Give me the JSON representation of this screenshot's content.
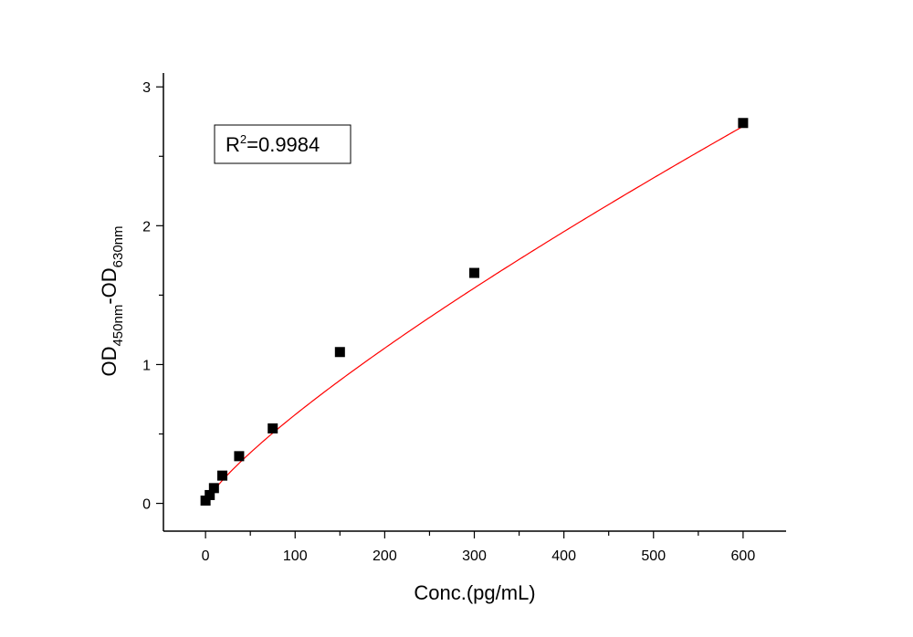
{
  "chart_data": {
    "type": "scatter",
    "xlabel": "Conc.(pg/mL)",
    "ylabel": {
      "prefix": "OD",
      "sub1": "450nm",
      "middle": "-OD",
      "sub2": "630nm"
    },
    "xlim": [
      -47,
      648
    ],
    "ylim": [
      -0.2,
      3.1
    ],
    "x_ticks": [
      0,
      100,
      200,
      300,
      400,
      500,
      600
    ],
    "x_tick_labels": [
      "0",
      "100",
      "200",
      "300",
      "400",
      "500",
      "600"
    ],
    "y_ticks": [
      0,
      1,
      2,
      3
    ],
    "y_tick_labels": [
      "0",
      "1",
      "2",
      "3"
    ],
    "x_minor_step": 50,
    "y_minor_step": 0.5,
    "grid": false,
    "series": [
      {
        "marker": "square",
        "color": "#000000",
        "x": [
          0,
          4.69,
          9.38,
          18.75,
          37.5,
          75,
          150,
          300,
          600
        ],
        "y": [
          0.02,
          0.06,
          0.11,
          0.2,
          0.34,
          0.54,
          1.09,
          1.66,
          2.74
        ]
      }
    ],
    "fit_curve": {
      "color": "#ff0000",
      "form": "power",
      "a": 0.01546,
      "b": 0.808,
      "c": 0.0,
      "x_range": [
        0,
        600
      ]
    },
    "annotation": {
      "prefix": "R",
      "sup": "2",
      "suffix": "=0.9984"
    }
  }
}
